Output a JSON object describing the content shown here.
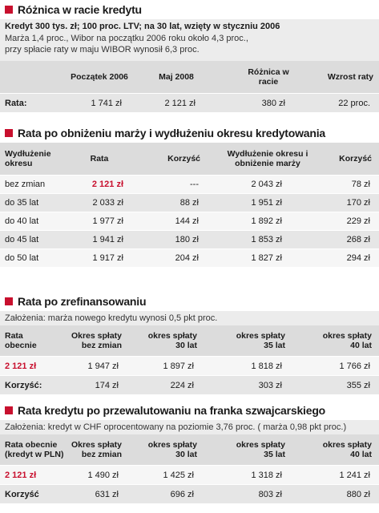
{
  "s1": {
    "title": "Różnica w racie kredytu",
    "intro_bold": "Kredyt 300 tys. zł; 100 proc. LTV; na 30 lat, wzięty w styczniu 2006",
    "intro_l1": "Marża 1,4 proc., Wibor na początku 2006 roku około 4,3 proc.,",
    "intro_l2": "przy spłacie raty w maju WIBOR wynosił 6,3 proc.",
    "h": [
      "Początek 2006",
      "Maj 2008",
      "Różnica w racie",
      "Wzrost raty"
    ],
    "row": {
      "label": "Rata:",
      "c1": "1 741 zł",
      "c2": "2 121 zł",
      "c3": "380 zł",
      "c4": "22 proc."
    }
  },
  "s2": {
    "title": "Rata po obniżeniu marży i wydłużeniu okresu kredytowania",
    "h": [
      "Wydłużenie okresu",
      "Rata",
      "Korzyść",
      "Wydłużenie okresu i obniżenie marży",
      "Korzyść"
    ],
    "rows": [
      {
        "label": "bez zmian",
        "rata": "2 121 zł",
        "k1": "---",
        "w": "2 043 zł",
        "k2": "78 zł"
      },
      {
        "label": "do 35 lat",
        "rata": "2 033 zł",
        "k1": "88 zł",
        "w": "1 951 zł",
        "k2": "170 zł"
      },
      {
        "label": "do 40 lat",
        "rata": "1 977 zł",
        "k1": "144 zł",
        "w": "1 892 zł",
        "k2": "229 zł"
      },
      {
        "label": "do 45 lat",
        "rata": "1 941 zł",
        "k1": "180 zł",
        "w": "1 853 zł",
        "k2": "268 zł"
      },
      {
        "label": "do 50 lat",
        "rata": "1 917 zł",
        "k1": "204 zł",
        "w": "1 827 zł",
        "k2": "294 zł"
      }
    ]
  },
  "s3": {
    "title": "Rata po zrefinansowaniu",
    "intro": "Założenia: marża nowego kredytu wynosi 0,5 pkt proc.",
    "h": [
      "Rata obecnie",
      "Okres spłaty bez zmian",
      "okres spłaty 30 lat",
      "okres spłaty 35 lat",
      "okres spłaty 40 lat"
    ],
    "r1": {
      "label": "2 121 zł",
      "c1": "1 947 zł",
      "c2": "1 897 zł",
      "c3": "1 818 zł",
      "c4": "1 766 zł"
    },
    "r2": {
      "label": "Korzyść:",
      "c1": "174 zł",
      "c2": "224 zł",
      "c3": "303 zł",
      "c4": "355 zł"
    }
  },
  "s4": {
    "title": "Rata kredytu po przewalutowaniu na franka szwajcarskiego",
    "intro": "Założenia: kredyt w CHF oprocentowany na poziomie 3,76 proc. ( marża 0,98 pkt proc.)",
    "h": [
      "Rata obecnie (kredyt w PLN)",
      "Okres spłaty bez zmian",
      "okres spłaty 30 lat",
      "okres spłaty 35 lat",
      "okres spłaty 40 lat"
    ],
    "r1": {
      "label": "2 121 zł",
      "c1": "1 490 zł",
      "c2": "1 425 zł",
      "c3": "1 318 zł",
      "c4": "1 241 zł"
    },
    "r2": {
      "label": "Korzyść",
      "c1": "631 zł",
      "c2": "696 zł",
      "c3": "803 zł",
      "c4": "880 zł"
    }
  }
}
